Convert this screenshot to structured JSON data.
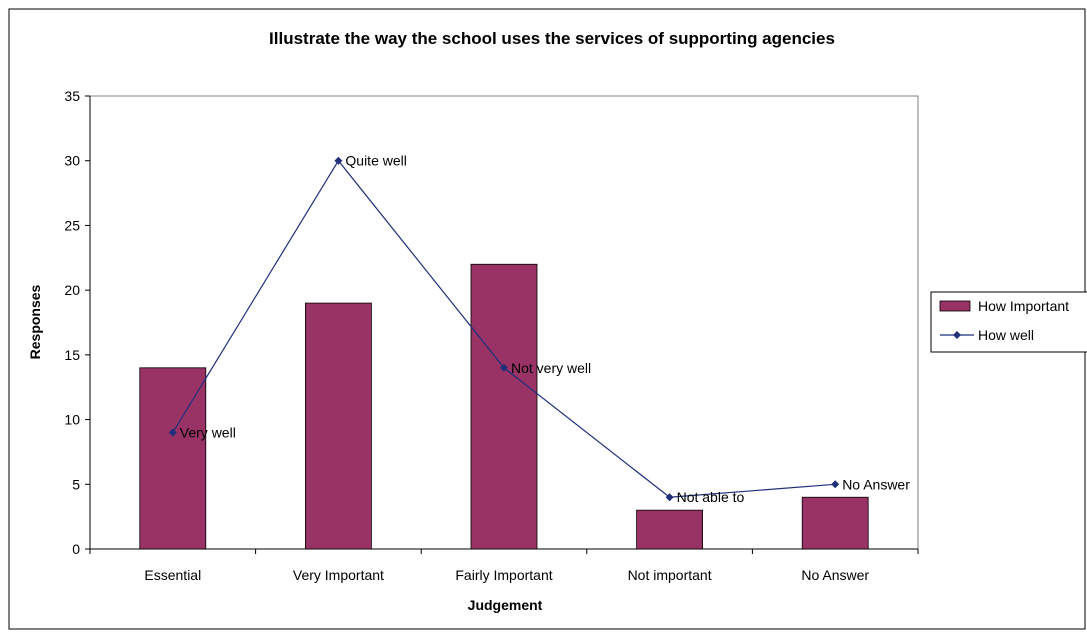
{
  "chart_data": {
    "type": "bar",
    "title": "Illustrate the way the school uses the services of supporting agencies",
    "xlabel": "Judgement",
    "ylabel": "Responses",
    "ylim": [
      0,
      35
    ],
    "yticks": [
      0,
      5,
      10,
      15,
      20,
      25,
      30,
      35
    ],
    "grid": false,
    "legend_position": "right",
    "categories": [
      "Essential",
      "Very Important",
      "Fairly Important",
      "Not important",
      "No Answer"
    ],
    "series": [
      {
        "name": "How Important",
        "type": "bar",
        "color": "#993366",
        "values": [
          14,
          19,
          22,
          3,
          4
        ]
      },
      {
        "name": "How well",
        "type": "line",
        "color": "#1f2f7a",
        "values": [
          9,
          30,
          14,
          4,
          5
        ],
        "point_labels": [
          "Very well",
          "Quite well",
          "Not very well",
          "Not able to",
          "No Answer"
        ]
      }
    ]
  }
}
